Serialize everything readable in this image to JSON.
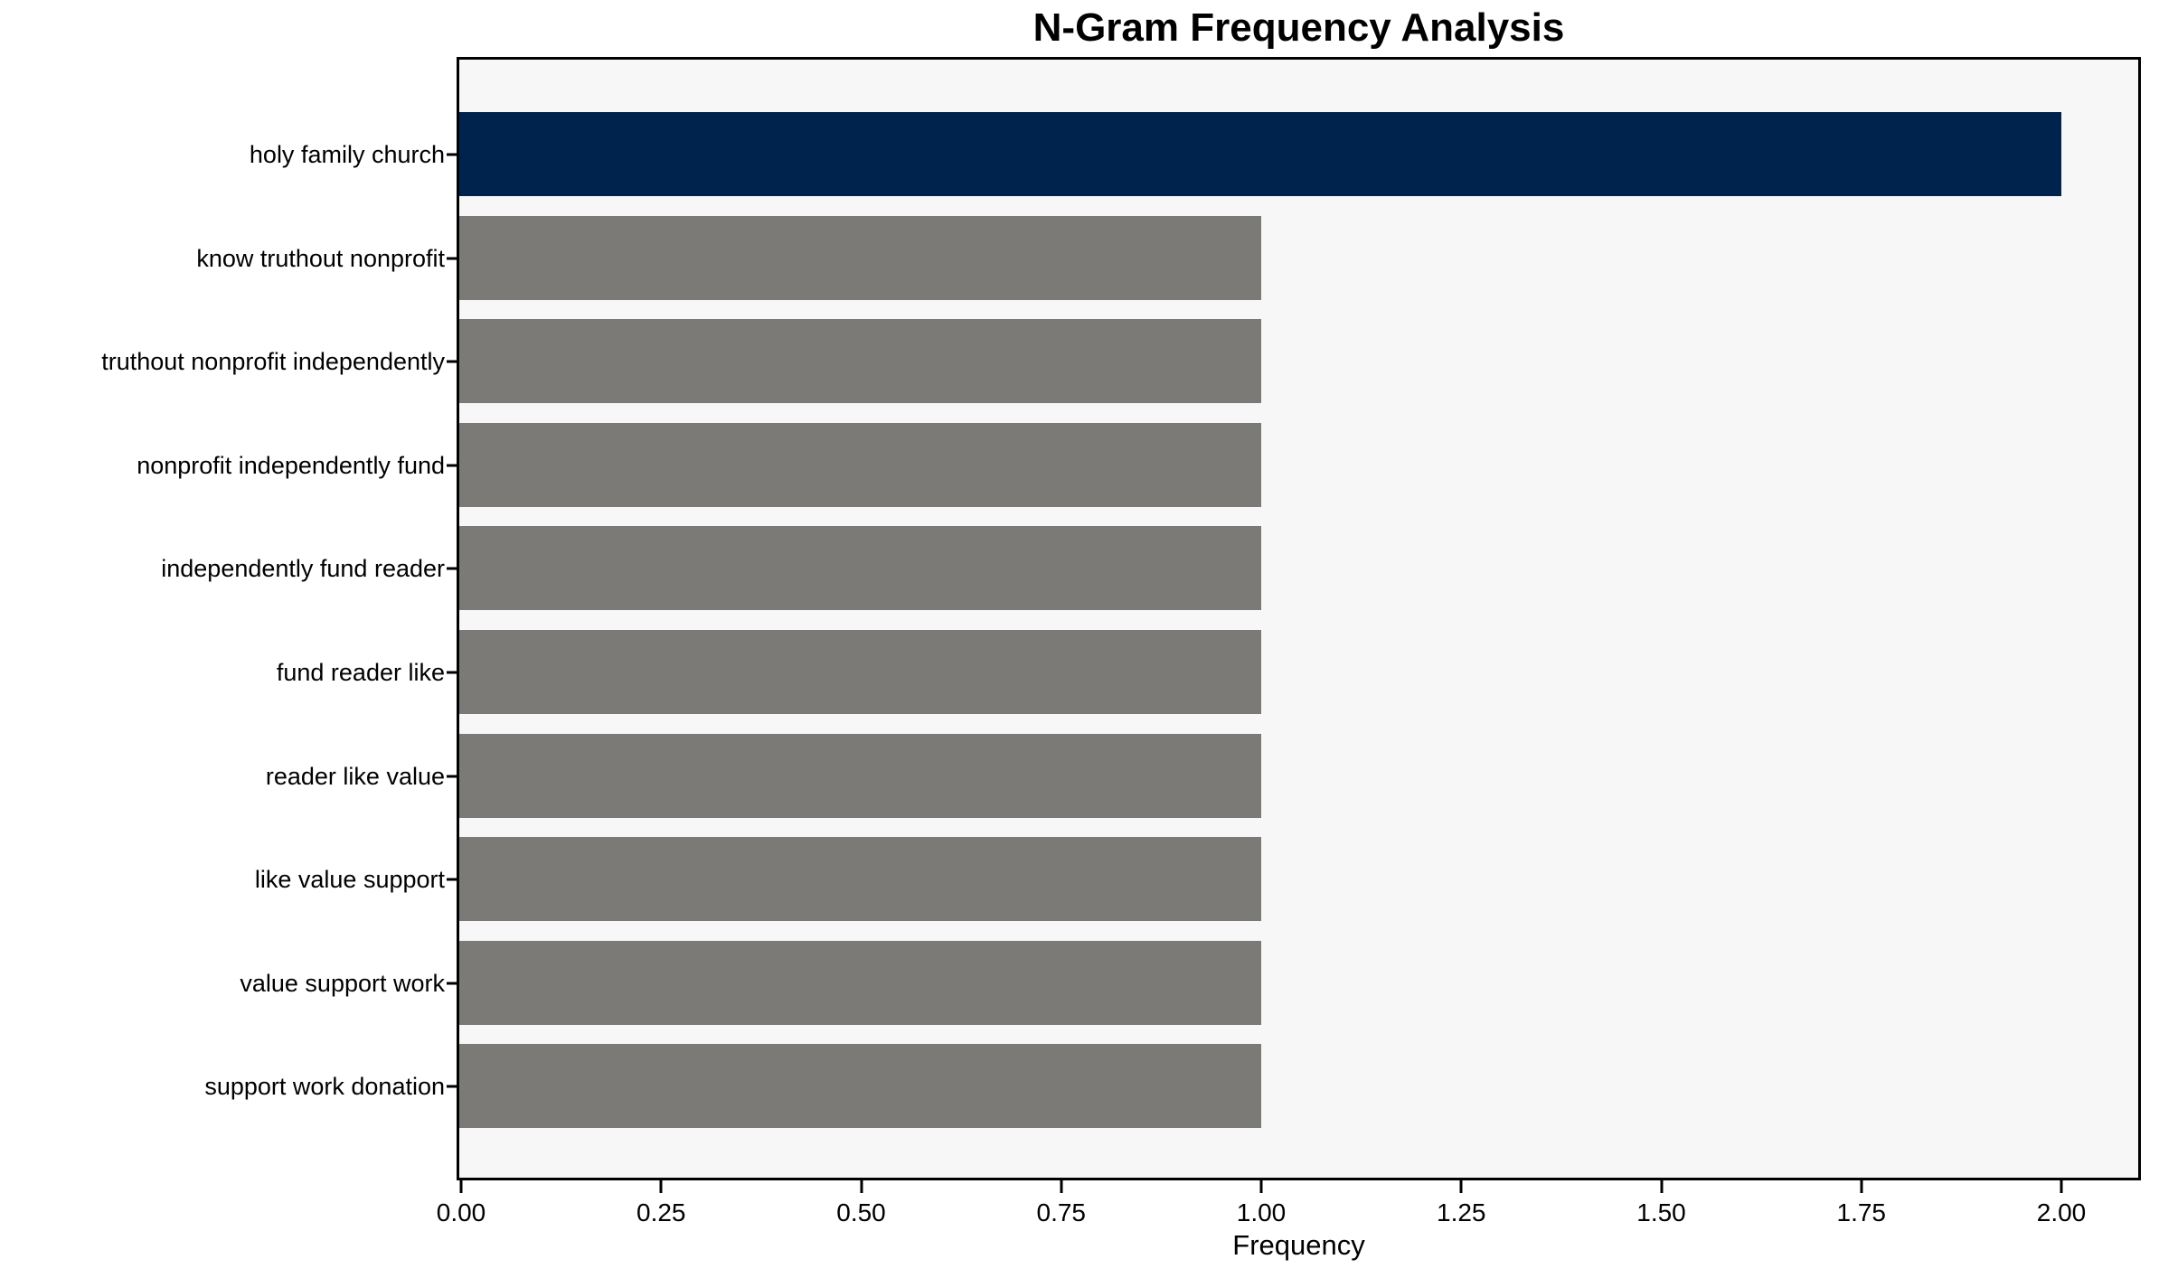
{
  "chart_data": {
    "type": "bar",
    "orientation": "horizontal",
    "title": "N-Gram Frequency Analysis",
    "xlabel": "Frequency",
    "ylabel": "",
    "categories": [
      "holy family church",
      "know truthout nonprofit",
      "truthout nonprofit independently",
      "nonprofit independently fund",
      "independently fund reader",
      "fund reader like",
      "reader like value",
      "like value support",
      "value support work",
      "support work donation"
    ],
    "values": [
      2.0,
      1.0,
      1.0,
      1.0,
      1.0,
      1.0,
      1.0,
      1.0,
      1.0,
      1.0
    ],
    "bar_colors": [
      "#00234e",
      "#7c7a76",
      "#7c7a76",
      "#7c7a76",
      "#7c7a76",
      "#7c7a76",
      "#7c7a76",
      "#7c7a76",
      "#7c7a76",
      "#7c7a76"
    ],
    "x_ticks": [
      "0.00",
      "0.25",
      "0.50",
      "0.75",
      "1.00",
      "1.25",
      "1.50",
      "1.75",
      "2.00"
    ],
    "x_tick_values": [
      0,
      0.25,
      0.5,
      0.75,
      1.0,
      1.25,
      1.5,
      1.75,
      2.0
    ],
    "xlim": [
      0,
      2.1
    ],
    "grid": false,
    "legend": null,
    "colors": {
      "highlight": "#00234e",
      "default_bar": "#7c7a76",
      "plot_background": "#f7f7f7",
      "figure_background": "#ffffff",
      "spine": "#000000",
      "text": "#000000"
    }
  }
}
